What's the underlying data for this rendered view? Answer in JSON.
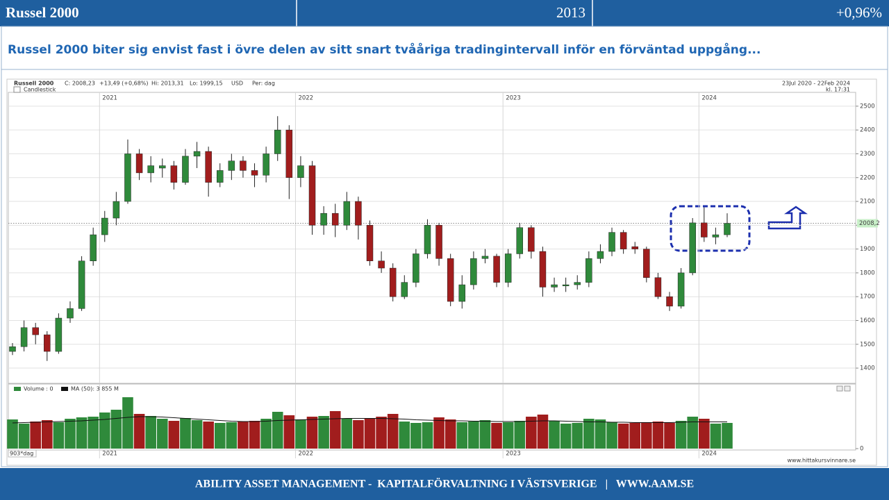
{
  "header": {
    "title": "Russel 2000",
    "year": "2013",
    "change": "+0,96%"
  },
  "subtitle": "Russel 2000 biter sig envist fast i övre delen av sitt snart tvååriga tradingintervall inför en förväntad uppgång...",
  "footer": "ABILITY ASSET MANAGEMENT -  KAPITALFÖRVALTNING I VÄSTSVERIGE   |   WWW.AAM.SE",
  "chart_data": {
    "type": "candlestick",
    "title": "Russell 2000",
    "info": [
      "C: 2008,23",
      "+13,49 (+0,68%)",
      "Hi: 2013,31",
      "Lo: 1999,15",
      "USD",
      "Per: dag"
    ],
    "legend": "Candlestick",
    "date_range": "23Jul 2020 - 22Feb 2024",
    "time": "kl. 17:31",
    "categories": [
      null,
      null,
      null,
      null,
      null,
      null,
      null,
      null,
      "2021",
      null,
      null,
      null,
      null,
      null,
      null,
      null,
      null,
      null,
      null,
      null,
      null,
      null,
      null,
      null,
      null,
      "2022",
      null,
      null,
      null,
      null,
      null,
      null,
      null,
      null,
      null,
      null,
      null,
      null,
      null,
      null,
      null,
      null,
      null,
      "2023",
      null,
      null,
      null,
      null,
      null,
      null,
      null,
      null,
      null,
      null,
      null,
      null,
      null,
      null,
      null,
      null,
      "2024",
      null,
      null
    ],
    "open": [
      1470,
      1490,
      1570,
      1540,
      1470,
      1610,
      1650,
      1850,
      1960,
      2030,
      2100,
      2300,
      2220,
      2240,
      2250,
      2180,
      2290,
      2310,
      2180,
      2230,
      2270,
      2230,
      2210,
      2300,
      2400,
      2200,
      2250,
      2000,
      2050,
      2000,
      2100,
      2000,
      1850,
      1820,
      1700,
      1760,
      1880,
      2000,
      1860,
      1680,
      1750,
      1860,
      1870,
      1760,
      1880,
      1990,
      1890,
      1740,
      1745,
      1750,
      1760,
      1860,
      1890,
      1970,
      1910,
      1900,
      1780,
      1700,
      1660,
      1800,
      2010,
      1950,
      1960
    ],
    "high": [
      1505,
      1600,
      1590,
      1555,
      1630,
      1680,
      1870,
      1990,
      2060,
      2140,
      2360,
      2320,
      2290,
      2280,
      2270,
      2320,
      2350,
      2330,
      2260,
      2300,
      2290,
      2260,
      2330,
      2458,
      2420,
      2290,
      2270,
      2080,
      2090,
      2140,
      2120,
      2020,
      1890,
      1840,
      1790,
      1900,
      2025,
      2010,
      1880,
      1790,
      1890,
      1900,
      1880,
      1900,
      2010,
      2000,
      1910,
      1780,
      1780,
      1790,
      1890,
      1920,
      1990,
      1980,
      1930,
      1910,
      1800,
      1720,
      1820,
      2030,
      2075,
      1990,
      2050
    ],
    "low": [
      1455,
      1470,
      1500,
      1430,
      1460,
      1590,
      1640,
      1830,
      1930,
      2000,
      2090,
      2190,
      2180,
      2200,
      2150,
      2170,
      2240,
      2120,
      2160,
      2190,
      2200,
      2160,
      2180,
      2270,
      2110,
      2160,
      1960,
      1960,
      1950,
      1980,
      1940,
      1830,
      1800,
      1680,
      1690,
      1740,
      1860,
      1830,
      1660,
      1650,
      1730,
      1840,
      1740,
      1740,
      1860,
      1860,
      1700,
      1720,
      1720,
      1730,
      1740,
      1840,
      1870,
      1880,
      1880,
      1760,
      1690,
      1640,
      1650,
      1790,
      1930,
      1920,
      1950
    ],
    "close": [
      1490,
      1570,
      1540,
      1470,
      1610,
      1650,
      1850,
      1960,
      2030,
      2100,
      2300,
      2220,
      2250,
      2250,
      2180,
      2290,
      2310,
      2180,
      2230,
      2270,
      2230,
      2210,
      2300,
      2400,
      2200,
      2250,
      2000,
      2050,
      2000,
      2100,
      2000,
      1850,
      1820,
      1700,
      1760,
      1880,
      2000,
      1860,
      1680,
      1750,
      1860,
      1870,
      1760,
      1880,
      1990,
      1890,
      1740,
      1750,
      1750,
      1760,
      1860,
      1890,
      1970,
      1900,
      1900,
      1780,
      1700,
      1660,
      1800,
      2010,
      1950,
      1960,
      2008
    ],
    "up_color": "#2f8a3b",
    "down_color": "#a11d1d",
    "ylim": [
      1336,
      2558
    ],
    "yticks": [
      1400,
      1500,
      1600,
      1700,
      1800,
      1900,
      2000,
      2100,
      2200,
      2300,
      2400,
      2500
    ],
    "grid": true,
    "last_price": {
      "value": 2008.2,
      "label": "2008,2"
    },
    "volume": {
      "legend": "Volume : 0",
      "ma_legend": "MA (50): 3 855 M",
      "values": [
        4200,
        3600,
        3900,
        4100,
        3800,
        4300,
        4500,
        4600,
        5200,
        5600,
        7400,
        5000,
        4700,
        4300,
        4000,
        4400,
        4100,
        3900,
        3700,
        3800,
        3900,
        4000,
        4300,
        5300,
        4800,
        4200,
        4600,
        4700,
        5400,
        4300,
        4100,
        4400,
        4600,
        5000,
        3900,
        3700,
        3800,
        4500,
        4200,
        3800,
        3900,
        4100,
        3700,
        3800,
        4000,
        4600,
        4900,
        4000,
        3600,
        3700,
        4300,
        4200,
        3800,
        3600,
        3700,
        3800,
        3900,
        3700,
        4000,
        4600,
        4300,
        3600,
        3700
      ],
      "ma": [
        3700,
        3750,
        3800,
        3850,
        3900,
        3950,
        4000,
        4100,
        4200,
        4350,
        4500,
        4600,
        4600,
        4550,
        4450,
        4350,
        4250,
        4150,
        4050,
        3950,
        3900,
        3900,
        3950,
        4050,
        4100,
        4150,
        4200,
        4250,
        4300,
        4350,
        4350,
        4350,
        4350,
        4300,
        4250,
        4150,
        4100,
        4050,
        4000,
        4000,
        3950,
        3950,
        3900,
        3900,
        3900,
        3950,
        4000,
        4000,
        3950,
        3900,
        3850,
        3850,
        3800,
        3800,
        3750,
        3750,
        3750,
        3750,
        3800,
        3850,
        3850,
        3850,
        3855
      ],
      "ylim": [
        0,
        8000
      ],
      "yticks": [
        0
      ]
    },
    "period_label": "903*dag",
    "source": "www.hittakursvinnare.se"
  }
}
